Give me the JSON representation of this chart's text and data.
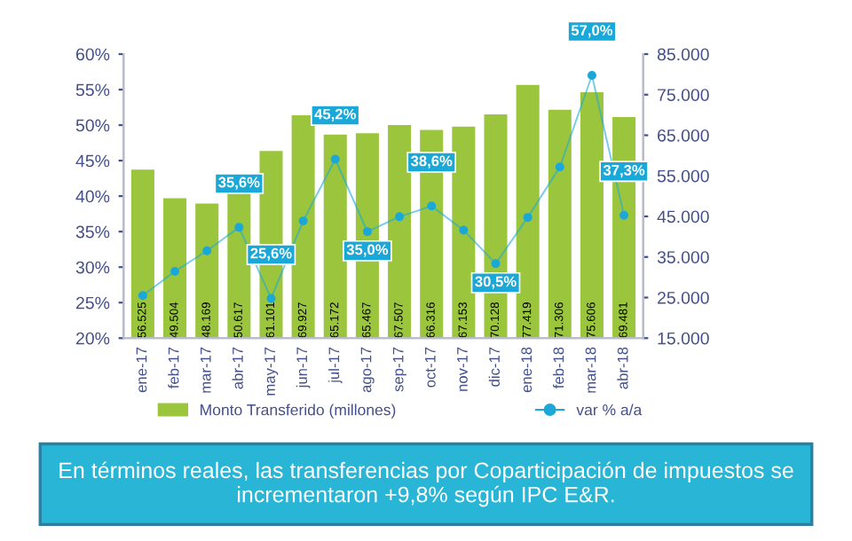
{
  "chart_data": {
    "type": "bar",
    "categories": [
      "ene-17",
      "feb-17",
      "mar-17",
      "abr-17",
      "may-17",
      "jun-17",
      "jul-17",
      "ago-17",
      "sep-17",
      "oct-17",
      "nov-17",
      "dic-17",
      "ene-18",
      "feb-18",
      "mar-18",
      "abr-18"
    ],
    "series": [
      {
        "name": "Monto Transferido (millones)",
        "axis": "y2",
        "color": "#9bc53d",
        "values": [
          56525,
          49504,
          48169,
          50617,
          61101,
          69927,
          65172,
          65467,
          67507,
          66316,
          67153,
          70128,
          77419,
          71306,
          75606,
          69481
        ],
        "value_labels": [
          "56.525",
          "49.504",
          "48.169",
          "50.617",
          "61.101",
          "69.927",
          "65.172",
          "65.467",
          "67.507",
          "66.316",
          "67.153",
          "70.128",
          "77.419",
          "71.306",
          "75.606",
          "69.481"
        ]
      },
      {
        "name": "var % a/a",
        "type": "line",
        "axis": "y",
        "color": "#1aa8d8",
        "marker": "circle",
        "values": [
          26.0,
          29.4,
          32.3,
          35.6,
          25.6,
          36.5,
          45.2,
          35.0,
          37.1,
          38.6,
          35.2,
          30.5,
          37.0,
          44.1,
          57.0,
          37.3
        ],
        "value_labels": [
          null,
          null,
          null,
          "35,6%",
          "25,6%",
          null,
          "45,2%",
          "35,0%",
          null,
          "38,6%",
          null,
          "30,5%",
          null,
          null,
          "57,0%",
          "37,3%"
        ]
      }
    ],
    "ylim": [
      20,
      60
    ],
    "yticks": [
      {
        "value": 20,
        "label": "20%"
      },
      {
        "value": 25,
        "label": "25%"
      },
      {
        "value": 30,
        "label": "30%"
      },
      {
        "value": 35,
        "label": "35%"
      },
      {
        "value": 40,
        "label": "40%"
      },
      {
        "value": 45,
        "label": "45%"
      },
      {
        "value": 50,
        "label": "50%"
      },
      {
        "value": 55,
        "label": "55%"
      },
      {
        "value": 60,
        "label": "60%"
      }
    ],
    "y2lim": [
      15000,
      85000
    ],
    "y2ticks": [
      {
        "value": 15000,
        "label": "15.000"
      },
      {
        "value": 25000,
        "label": "25.000"
      },
      {
        "value": 35000,
        "label": "35.000"
      },
      {
        "value": 45000,
        "label": "45.000"
      },
      {
        "value": 55000,
        "label": "55.000"
      },
      {
        "value": 65000,
        "label": "65.000"
      },
      {
        "value": 75000,
        "label": "75.000"
      },
      {
        "value": 85000,
        "label": "85.000"
      }
    ],
    "grid": false,
    "legend": "bottom",
    "annotations": [
      "En términos reales, las transferencias por Coparticipación de impuestos se incrementaron +9,8% según IPC E&R."
    ]
  }
}
